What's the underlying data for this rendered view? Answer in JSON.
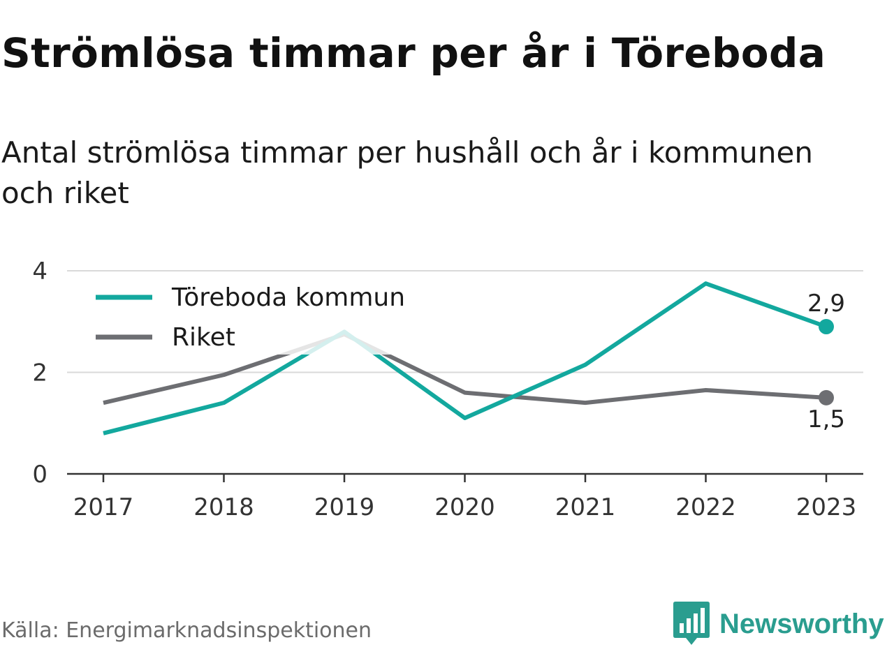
{
  "header": {
    "title": "Strömlösa timmar per år i Töreboda",
    "subtitle": "Antal strömlösa timmar per hushåll och år i kommunen och riket"
  },
  "footer": {
    "source": "Källa: Energimarknadsinspektionen",
    "brand": "Newsworthy",
    "brand_icon": "bar-chart-speech-bubble-icon"
  },
  "colors": {
    "primary": "#13a89e",
    "secondary": "#6d6e72",
    "grid": "#d9d9d9",
    "axis": "#333333",
    "brand": "#2a9d8f"
  },
  "chart_data": {
    "type": "line",
    "categories": [
      "2017",
      "2018",
      "2019",
      "2020",
      "2021",
      "2022",
      "2023"
    ],
    "series": [
      {
        "name": "Töreboda kommun",
        "values": [
          0.8,
          1.4,
          2.8,
          1.1,
          2.15,
          3.75,
          2.9
        ]
      },
      {
        "name": "Riket",
        "values": [
          1.4,
          1.95,
          2.75,
          1.6,
          1.4,
          1.65,
          1.5
        ]
      }
    ],
    "end_labels": [
      "2,9",
      "1,5"
    ],
    "yticks": [
      "0",
      "2",
      "4"
    ],
    "ylim": [
      0,
      4
    ],
    "grid": true,
    "legend_position": "top-left"
  }
}
